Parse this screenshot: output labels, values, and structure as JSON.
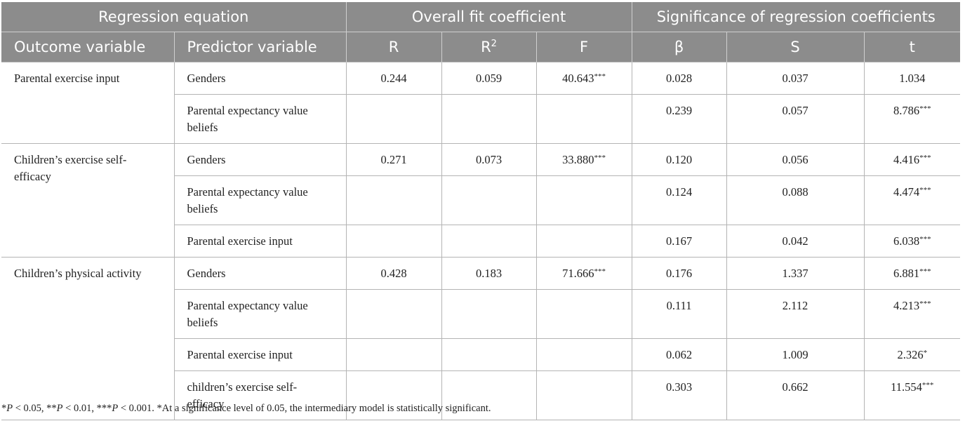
{
  "table": {
    "group_headers": {
      "regression": "Regression equation",
      "fit": "Overall fit coefficient",
      "significance": "Significance of regression coefficients"
    },
    "column_headers": {
      "outcome": "Outcome variable",
      "predictor": "Predictor variable",
      "r": "R",
      "r2_base": "R",
      "r2_sup": "2",
      "f": "F",
      "beta": "β",
      "s": "S",
      "t": "t"
    },
    "groups": [
      {
        "outcome": "Parental exercise input",
        "r": "0.244",
        "r2": "0.059",
        "f": "40.643***",
        "rows": [
          {
            "predictor": "Genders",
            "beta": "0.028",
            "s": "0.037",
            "t": "1.034"
          },
          {
            "predictor": "Parental expectancy value beliefs",
            "beta": "0.239",
            "s": "0.057",
            "t": "8.786***"
          }
        ]
      },
      {
        "outcome": "Children’s exercise self-efficacy",
        "r": "0.271",
        "r2": "0.073",
        "f": "33.880***",
        "rows": [
          {
            "predictor": "Genders",
            "beta": "0.120",
            "s": "0.056",
            "t": "4.416***"
          },
          {
            "predictor": "Parental expectancy value beliefs",
            "beta": "0.124",
            "s": "0.088",
            "t": "4.474***"
          },
          {
            "predictor": "Parental exercise input",
            "beta": "0.167",
            "s": "0.042",
            "t": "6.038***"
          }
        ]
      },
      {
        "outcome": "Children’s physical activity",
        "r": "0.428",
        "r2": "0.183",
        "f": "71.666***",
        "rows": [
          {
            "predictor": "Genders",
            "beta": "0.176",
            "s": "1.337",
            "t": "6.881***"
          },
          {
            "predictor": "Parental expectancy value beliefs",
            "beta": "0.111",
            "s": "2.112",
            "t": "4.213***"
          },
          {
            "predictor": "Parental exercise input",
            "beta": "0.062",
            "s": "1.009",
            "t": "2.326*"
          },
          {
            "predictor": "children’s exercise self-efficacy",
            "beta": "0.303",
            "s": "0.662",
            "t": "11.554***"
          }
        ]
      }
    ]
  },
  "footnote": {
    "m1": "*",
    "m1_p": "P",
    "m1_text": " < 0.05, ",
    "m2": "**",
    "m2_p": "P",
    "m2_text": " < 0.01, ",
    "m3": "***",
    "m3_p": "P",
    "m3_text": " < 0.001. ",
    "m4": "*",
    "m4_text": "At a significance level of 0.05, the intermediary model is statistically significant."
  }
}
